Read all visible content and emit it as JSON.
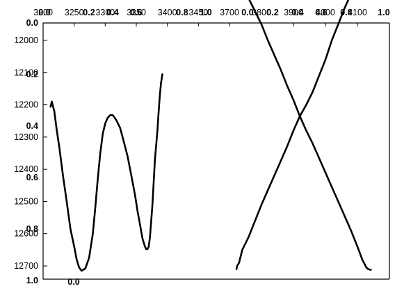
{
  "chart_data": [
    {
      "type": "line",
      "title": "",
      "xlabel": "",
      "ylabel": "",
      "x_axis": {
        "position": "top",
        "range": [
          3200,
          3500
        ],
        "ticks": [
          3200,
          3250,
          3300,
          3350,
          3400,
          3450
        ],
        "tick_labels": [
          "3200",
          "3250",
          "3300",
          "3350",
          "3400",
          "3450"
        ]
      },
      "y_axis": {
        "position": "left",
        "inverted": true,
        "range": [
          12000,
          12800
        ],
        "ticks": [
          12000,
          12100,
          12200,
          12300,
          12400,
          12500,
          12600,
          12700
        ],
        "tick_labels": [
          "12000",
          "12100",
          "12200",
          "12300",
          "12400",
          "12500",
          "12600",
          "12700"
        ]
      },
      "grid": false,
      "series": [
        {
          "x": [
            3212,
            3214,
            3218,
            3222,
            3226,
            3232,
            3238,
            3244,
            3250,
            3254,
            3258,
            3262,
            3268,
            3274,
            3280,
            3284,
            3288,
            3292,
            3296,
            3300,
            3304,
            3308,
            3312,
            3318,
            3324,
            3330,
            3336,
            3342,
            3348,
            3352,
            3356,
            3360,
            3364,
            3366,
            3368,
            3370,
            3372,
            3376,
            3380,
            3384,
            3386,
            3388,
            3390,
            3392
          ],
          "y": [
            12206,
            12190,
            12220,
            12280,
            12330,
            12420,
            12500,
            12585,
            12640,
            12680,
            12705,
            12715,
            12708,
            12675,
            12600,
            12520,
            12430,
            12350,
            12290,
            12258,
            12240,
            12232,
            12232,
            12248,
            12272,
            12315,
            12360,
            12420,
            12480,
            12530,
            12572,
            12615,
            12640,
            12648,
            12648,
            12640,
            12610,
            12510,
            12370,
            12280,
            12220,
            12170,
            12130,
            12105
          ]
        }
      ]
    },
    {
      "type": "line",
      "title": "",
      "xlabel": "",
      "ylabel": "",
      "x_axis": {
        "position": "top",
        "range": [
          3700,
          4200
        ],
        "ticks": [
          3700,
          3800,
          3900,
          4000,
          4100
        ],
        "tick_labels": [
          "3700",
          "3800",
          "3900",
          "4000",
          "4100"
        ]
      },
      "y_axis": {
        "position": "left",
        "shared_with_chart": 0
      },
      "grid": false,
      "series": [
        {
          "x": [
            3722,
            3724,
            3730,
            3740,
            3760,
            3780,
            3800,
            3820,
            3840,
            3860,
            3880,
            3900,
            3920,
            3940,
            3960,
            3980,
            4000,
            4020,
            4040,
            4060,
            4080,
            4100,
            4115,
            4128,
            4134,
            4142
          ],
          "y": [
            12710,
            12700,
            12690,
            12650,
            12610,
            12560,
            12510,
            12465,
            12420,
            12375,
            12330,
            12280,
            12235,
            12200,
            12160,
            12110,
            12060,
            12000,
            11950,
            11900,
            11855,
            11815,
            11790,
            11770,
            11775,
            11790
          ]
        },
        {
          "x": [
            3722,
            3724,
            3730,
            3740,
            3760,
            3780,
            3800,
            3820,
            3840,
            3860,
            3880,
            3900,
            3920,
            3940,
            3960,
            3980,
            4000,
            4020,
            4040,
            4060,
            4080,
            4100,
            4115,
            4128,
            4134,
            4142
          ],
          "y": [
            11780,
            11795,
            11810,
            11830,
            11870,
            11910,
            11950,
            12000,
            12045,
            12090,
            12140,
            12185,
            12235,
            12280,
            12320,
            12365,
            12410,
            12455,
            12500,
            12545,
            12590,
            12640,
            12680,
            12705,
            12710,
            12712
          ]
        }
      ]
    }
  ],
  "overlay_labels": {
    "top_left": [
      "0.0",
      "0.2",
      "0.4",
      "0.6",
      "0.8",
      "1.0"
    ],
    "top_right": [
      "0.0",
      "0.2",
      "0.4",
      "0.6",
      "0.8",
      "1.0"
    ],
    "left": [
      "0.0",
      "0.2",
      "0.4",
      "0.6",
      "0.8",
      "1.0"
    ],
    "bottom_left": "0.0"
  }
}
